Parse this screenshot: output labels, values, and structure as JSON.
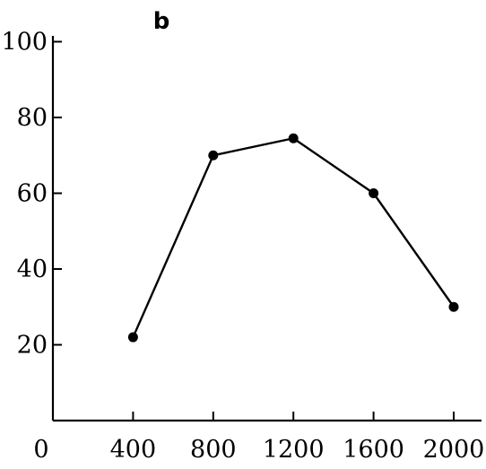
{
  "chart_data": {
    "type": "line",
    "title": "b",
    "xlabel": "",
    "ylabel": "",
    "x": [
      400,
      800,
      1200,
      1600,
      2000
    ],
    "series": [
      {
        "values": [
          22,
          70,
          74.5,
          60,
          30
        ]
      }
    ],
    "xlim": [
      0,
      2000
    ],
    "ylim": [
      0,
      100
    ],
    "xticks": [
      0,
      400,
      800,
      1200,
      1600,
      2000
    ],
    "yticks": [
      20,
      40,
      60,
      80,
      100
    ],
    "xtick_labels": [
      "0",
      "400",
      "800",
      "1200",
      "1600",
      "2000"
    ],
    "ytick_labels": [
      "20",
      "40",
      "60",
      "80",
      "100"
    ],
    "grid": false,
    "legend": "none",
    "colors": {
      "line": "#000000",
      "marker": "#000000"
    }
  }
}
